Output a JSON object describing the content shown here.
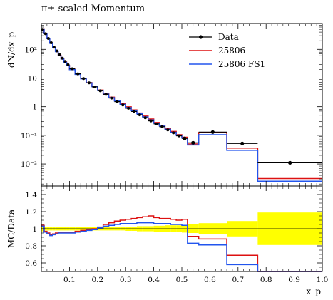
{
  "chart_data": {
    "type": "line",
    "title": "π± scaled Momentum",
    "xlabel": "x_p",
    "ylabel": "dN/dx_p",
    "ratio_ylabel": "MC/Data",
    "x_ticks": [
      0.1,
      0.2,
      0.3,
      0.4,
      0.5,
      0.6,
      0.7,
      0.8,
      0.9,
      1.0
    ],
    "x_tick_labels": [
      "0.1",
      "0.2",
      "0.3",
      "0.4",
      "0.5",
      "0.6",
      "0.7",
      "0.8",
      "0.9",
      "1.0"
    ],
    "xlim": [
      0,
      1
    ],
    "ylim": [
      0.0017,
      800
    ],
    "yscale": "log",
    "y_ticks": [
      0.01,
      0.1,
      1,
      10,
      100
    ],
    "y_tick_labels": [
      "10⁻²",
      "10⁻¹",
      "1",
      "10",
      "10²"
    ],
    "ratio_ylim": [
      0.5,
      1.5
    ],
    "ratio_ticks": [
      0.6,
      0.8,
      1.0,
      1.2,
      1.4
    ],
    "ratio_tick_labels": [
      "0.6",
      "0.8",
      "1",
      "1.2",
      "1.4"
    ],
    "legend_position": "top-right",
    "bin_edges": [
      0.0,
      0.01,
      0.02,
      0.03,
      0.04,
      0.05,
      0.06,
      0.07,
      0.08,
      0.09,
      0.1,
      0.12,
      0.14,
      0.16,
      0.18,
      0.2,
      0.22,
      0.24,
      0.26,
      0.28,
      0.3,
      0.32,
      0.34,
      0.36,
      0.38,
      0.4,
      0.42,
      0.44,
      0.46,
      0.48,
      0.5,
      0.52,
      0.56,
      0.66,
      0.77,
      1.0
    ],
    "series": [
      {
        "name": "Data",
        "color": "#000000",
        "style": "markers",
        "x": [
          0.005,
          0.015,
          0.025,
          0.035,
          0.045,
          0.055,
          0.065,
          0.075,
          0.085,
          0.095,
          0.11,
          0.13,
          0.15,
          0.17,
          0.19,
          0.21,
          0.23,
          0.25,
          0.27,
          0.29,
          0.31,
          0.33,
          0.35,
          0.37,
          0.39,
          0.41,
          0.43,
          0.45,
          0.47,
          0.49,
          0.51,
          0.54,
          0.61,
          0.715,
          0.885
        ],
        "values": [
          500,
          350,
          240,
          170,
          120,
          88,
          65,
          49,
          38,
          29,
          21,
          14,
          9.6,
          6.8,
          4.9,
          3.6,
          2.7,
          2.0,
          1.5,
          1.15,
          0.88,
          0.68,
          0.52,
          0.41,
          0.32,
          0.25,
          0.2,
          0.155,
          0.122,
          0.096,
          0.078,
          0.055,
          0.13,
          0.052,
          0.011
        ],
        "x_err": [
          0.005,
          0.005,
          0.005,
          0.005,
          0.005,
          0.005,
          0.005,
          0.005,
          0.005,
          0.005,
          0.01,
          0.01,
          0.01,
          0.01,
          0.01,
          0.01,
          0.01,
          0.01,
          0.01,
          0.01,
          0.01,
          0.01,
          0.01,
          0.01,
          0.01,
          0.01,
          0.01,
          0.01,
          0.01,
          0.01,
          0.01,
          0.02,
          0.05,
          0.055,
          0.115
        ]
      },
      {
        "name": "25806",
        "color": "#dd1111",
        "style": "histogram",
        "values": [
          520,
          360,
          240,
          165,
          116,
          85,
          62,
          47,
          36,
          27.5,
          20,
          13.6,
          9.5,
          6.9,
          5.1,
          3.8,
          2.85,
          2.15,
          1.64,
          1.27,
          0.99,
          0.77,
          0.6,
          0.47,
          0.37,
          0.28,
          0.225,
          0.172,
          0.137,
          0.105,
          0.086,
          0.05,
          0.125,
          0.036,
          0.0031
        ]
      },
      {
        "name": "25806 FS1",
        "color": "#2255ee",
        "style": "histogram",
        "values": [
          518,
          355,
          237,
          162,
          113,
          83,
          60,
          46,
          35,
          27,
          19.6,
          13.4,
          9.4,
          6.8,
          5.0,
          3.7,
          2.75,
          2.05,
          1.57,
          1.2,
          0.93,
          0.72,
          0.56,
          0.44,
          0.345,
          0.265,
          0.21,
          0.163,
          0.128,
          0.1,
          0.08,
          0.046,
          0.105,
          0.03,
          0.0025
        ]
      }
    ],
    "ratio": {
      "band_color": "#ffff00",
      "band_halfwidth": [
        0.03,
        0.02,
        0.02,
        0.02,
        0.02,
        0.02,
        0.02,
        0.02,
        0.02,
        0.02,
        0.02,
        0.02,
        0.02,
        0.02,
        0.02,
        0.02,
        0.02,
        0.02,
        0.02,
        0.02,
        0.025,
        0.025,
        0.03,
        0.03,
        0.03,
        0.035,
        0.035,
        0.04,
        0.04,
        0.04,
        0.045,
        0.05,
        0.065,
        0.09,
        0.19
      ],
      "series": [
        {
          "name": "25806",
          "color": "#dd1111",
          "values": [
            1.04,
            0.97,
            0.95,
            0.93,
            0.94,
            0.95,
            0.96,
            0.96,
            0.96,
            0.96,
            0.96,
            0.97,
            0.98,
            0.99,
            1.0,
            1.02,
            1.05,
            1.07,
            1.09,
            1.1,
            1.11,
            1.12,
            1.13,
            1.14,
            1.15,
            1.13,
            1.12,
            1.12,
            1.11,
            1.1,
            1.11,
            0.91,
            0.88,
            0.69,
            0.29
          ]
        },
        {
          "name": "25806 FS1",
          "color": "#2255ee",
          "values": [
            1.03,
            0.96,
            0.94,
            0.92,
            0.93,
            0.94,
            0.95,
            0.95,
            0.95,
            0.95,
            0.95,
            0.96,
            0.97,
            0.98,
            0.99,
            1.01,
            1.03,
            1.04,
            1.05,
            1.06,
            1.06,
            1.06,
            1.07,
            1.07,
            1.07,
            1.06,
            1.06,
            1.06,
            1.05,
            1.05,
            1.04,
            0.83,
            0.81,
            0.58,
            0.23
          ]
        }
      ]
    }
  }
}
